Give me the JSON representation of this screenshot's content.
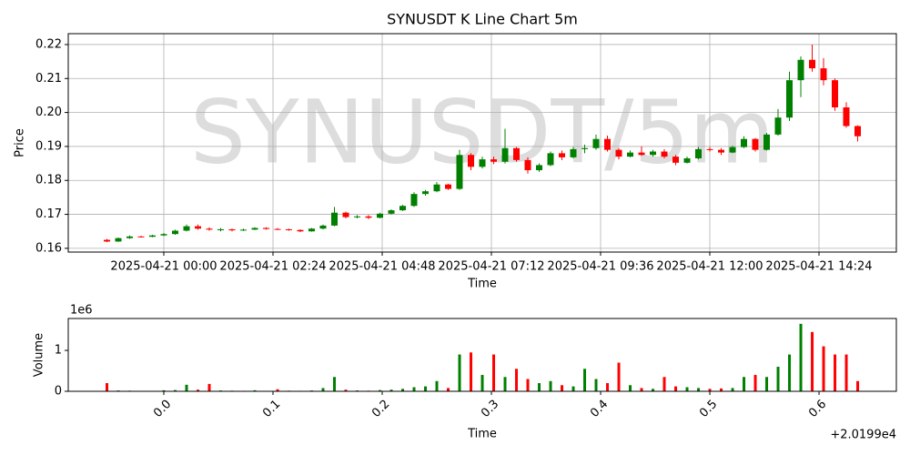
{
  "chart_data": [
    {
      "type": "candlestick",
      "title": "SYNUSDT K Line Chart 5m",
      "watermark": "SYNUSDT/5m",
      "xlabel": "Time",
      "ylabel": "Price",
      "grid": true,
      "up_color": "green",
      "down_color": "red",
      "xlim": [
        "2025-04-20 21:54",
        "2025-04-21 16:06"
      ],
      "xticks": [
        "2025-04-21 00:00",
        "2025-04-21 02:24",
        "2025-04-21 04:48",
        "2025-04-21 07:12",
        "2025-04-21 09:36",
        "2025-04-21 12:00",
        "2025-04-21 14:24"
      ],
      "ylim": [
        0.1589,
        0.2232
      ],
      "yticks": [
        0.16,
        0.17,
        0.18,
        0.19,
        {
          "value": 0.2,
          "label": "0.20"
        },
        0.21,
        0.22
      ],
      "x": [
        "2025-04-20 22:45",
        "2025-04-20 23:00",
        "2025-04-20 23:15",
        "2025-04-20 23:30",
        "2025-04-20 23:45",
        "2025-04-21 00:00",
        "2025-04-21 00:15",
        "2025-04-21 00:30",
        "2025-04-21 00:45",
        "2025-04-21 01:00",
        "2025-04-21 01:15",
        "2025-04-21 01:30",
        "2025-04-21 01:45",
        "2025-04-21 02:00",
        "2025-04-21 02:15",
        "2025-04-21 02:30",
        "2025-04-21 02:45",
        "2025-04-21 03:00",
        "2025-04-21 03:15",
        "2025-04-21 03:30",
        "2025-04-21 03:45",
        "2025-04-21 04:00",
        "2025-04-21 04:15",
        "2025-04-21 04:30",
        "2025-04-21 04:45",
        "2025-04-21 05:00",
        "2025-04-21 05:15",
        "2025-04-21 05:30",
        "2025-04-21 05:45",
        "2025-04-21 06:00",
        "2025-04-21 06:15",
        "2025-04-21 06:30",
        "2025-04-21 06:45",
        "2025-04-21 07:00",
        "2025-04-21 07:15",
        "2025-04-21 07:30",
        "2025-04-21 07:45",
        "2025-04-21 08:00",
        "2025-04-21 08:15",
        "2025-04-21 08:30",
        "2025-04-21 08:45",
        "2025-04-21 09:00",
        "2025-04-21 09:15",
        "2025-04-21 09:30",
        "2025-04-21 09:45",
        "2025-04-21 10:00",
        "2025-04-21 10:15",
        "2025-04-21 10:30",
        "2025-04-21 10:45",
        "2025-04-21 11:00",
        "2025-04-21 11:15",
        "2025-04-21 11:30",
        "2025-04-21 11:45",
        "2025-04-21 12:00",
        "2025-04-21 12:15",
        "2025-04-21 12:30",
        "2025-04-21 12:45",
        "2025-04-21 13:00",
        "2025-04-21 13:15",
        "2025-04-21 13:30",
        "2025-04-21 13:45",
        "2025-04-21 14:00",
        "2025-04-21 14:15",
        "2025-04-21 14:30",
        "2025-04-21 14:45",
        "2025-04-21 15:00",
        "2025-04-21 15:15"
      ],
      "open": [
        0.1625,
        0.162,
        0.163,
        0.1635,
        0.1634,
        0.1638,
        0.1642,
        0.1652,
        0.1665,
        0.1658,
        0.1655,
        0.1656,
        0.1653,
        0.1655,
        0.166,
        0.1657,
        0.1656,
        0.1654,
        0.165,
        0.1658,
        0.1667,
        0.1705,
        0.1692,
        0.1694,
        0.169,
        0.1702,
        0.1712,
        0.1725,
        0.176,
        0.1768,
        0.1788,
        0.1775,
        0.1875,
        0.184,
        0.1862,
        0.1855,
        0.1895,
        0.186,
        0.183,
        0.1845,
        0.188,
        0.1868,
        0.1892,
        0.1895,
        0.1922,
        0.189,
        0.187,
        0.1882,
        0.1875,
        0.1885,
        0.187,
        0.1852,
        0.1865,
        0.1892,
        0.189,
        0.1882,
        0.1898,
        0.1922,
        0.189,
        0.1935,
        0.1985,
        0.2095,
        0.2155,
        0.213,
        0.2095,
        0.2015,
        0.196
      ],
      "high": [
        0.1628,
        0.1632,
        0.1638,
        0.1637,
        0.164,
        0.1645,
        0.1655,
        0.167,
        0.167,
        0.1662,
        0.166,
        0.1658,
        0.1658,
        0.1662,
        0.1662,
        0.166,
        0.1658,
        0.1656,
        0.166,
        0.167,
        0.1722,
        0.1708,
        0.1698,
        0.1698,
        0.1705,
        0.1715,
        0.1728,
        0.1765,
        0.1772,
        0.1795,
        0.179,
        0.189,
        0.188,
        0.187,
        0.187,
        0.1952,
        0.1898,
        0.1868,
        0.185,
        0.1885,
        0.1888,
        0.1898,
        0.1905,
        0.1935,
        0.1932,
        0.1895,
        0.1888,
        0.19,
        0.189,
        0.1892,
        0.1875,
        0.187,
        0.1898,
        0.1898,
        0.1895,
        0.1902,
        0.193,
        0.1925,
        0.194,
        0.201,
        0.212,
        0.2165,
        0.22,
        0.216,
        0.21,
        0.203,
        0.1962
      ],
      "low": [
        0.1618,
        0.1619,
        0.1628,
        0.1632,
        0.1633,
        0.1636,
        0.164,
        0.165,
        0.1655,
        0.1652,
        0.165,
        0.165,
        0.1651,
        0.1654,
        0.1655,
        0.1654,
        0.1652,
        0.1648,
        0.1649,
        0.1656,
        0.1665,
        0.1688,
        0.1688,
        0.1686,
        0.1688,
        0.17,
        0.171,
        0.1722,
        0.1755,
        0.1765,
        0.1772,
        0.1772,
        0.183,
        0.1835,
        0.1848,
        0.185,
        0.1855,
        0.182,
        0.1825,
        0.1842,
        0.186,
        0.1865,
        0.188,
        0.189,
        0.1885,
        0.1862,
        0.1868,
        0.1872,
        0.187,
        0.1865,
        0.1845,
        0.185,
        0.1862,
        0.1885,
        0.1875,
        0.188,
        0.1895,
        0.1885,
        0.1888,
        0.1932,
        0.1975,
        0.2045,
        0.212,
        0.208,
        0.2005,
        0.1955,
        0.1915
      ],
      "close": [
        0.162,
        0.163,
        0.1635,
        0.1634,
        0.1638,
        0.1642,
        0.1652,
        0.1665,
        0.1658,
        0.1655,
        0.1656,
        0.1653,
        0.1655,
        0.166,
        0.1657,
        0.1656,
        0.1654,
        0.165,
        0.1658,
        0.1667,
        0.1705,
        0.1692,
        0.1694,
        0.169,
        0.1702,
        0.1712,
        0.1725,
        0.176,
        0.1768,
        0.1788,
        0.1775,
        0.1875,
        0.184,
        0.1862,
        0.1855,
        0.1895,
        0.186,
        0.183,
        0.1845,
        0.188,
        0.1868,
        0.1892,
        0.1895,
        0.1922,
        0.189,
        0.187,
        0.1882,
        0.1875,
        0.1885,
        0.187,
        0.1852,
        0.1865,
        0.1892,
        0.189,
        0.1882,
        0.1898,
        0.1922,
        0.189,
        0.1935,
        0.1985,
        0.2095,
        0.2155,
        0.213,
        0.2095,
        0.2015,
        0.196,
        0.193
      ]
    },
    {
      "type": "bar",
      "xlabel": "Time",
      "ylabel": "Volume",
      "grid": false,
      "y_offset": "1e6",
      "x_offset": "+2.0199e4",
      "xlim": [
        -0.0875,
        0.6708
      ],
      "xticks": [
        {
          "value": 0,
          "label": "0.0"
        },
        0.1,
        0.2,
        0.3,
        0.4,
        0.5,
        0.6
      ],
      "ylim": [
        0,
        1780000
      ],
      "yticks": [
        0,
        {
          "value": 1000000,
          "label": "1"
        }
      ],
      "x": [
        "2025-04-20 22:45",
        "2025-04-20 23:00",
        "2025-04-20 23:15",
        "2025-04-20 23:30",
        "2025-04-20 23:45",
        "2025-04-21 00:00",
        "2025-04-21 00:15",
        "2025-04-21 00:30",
        "2025-04-21 00:45",
        "2025-04-21 01:00",
        "2025-04-21 01:15",
        "2025-04-21 01:30",
        "2025-04-21 01:45",
        "2025-04-21 02:00",
        "2025-04-21 02:15",
        "2025-04-21 02:30",
        "2025-04-21 02:45",
        "2025-04-21 03:00",
        "2025-04-21 03:15",
        "2025-04-21 03:30",
        "2025-04-21 03:45",
        "2025-04-21 04:00",
        "2025-04-21 04:15",
        "2025-04-21 04:30",
        "2025-04-21 04:45",
        "2025-04-21 05:00",
        "2025-04-21 05:15",
        "2025-04-21 05:30",
        "2025-04-21 05:45",
        "2025-04-21 06:00",
        "2025-04-21 06:15",
        "2025-04-21 06:30",
        "2025-04-21 06:45",
        "2025-04-21 07:00",
        "2025-04-21 07:15",
        "2025-04-21 07:30",
        "2025-04-21 07:45",
        "2025-04-21 08:00",
        "2025-04-21 08:15",
        "2025-04-21 08:30",
        "2025-04-21 08:45",
        "2025-04-21 09:00",
        "2025-04-21 09:15",
        "2025-04-21 09:30",
        "2025-04-21 09:45",
        "2025-04-21 10:00",
        "2025-04-21 10:15",
        "2025-04-21 10:30",
        "2025-04-21 10:45",
        "2025-04-21 11:00",
        "2025-04-21 11:15",
        "2025-04-21 11:30",
        "2025-04-21 11:45",
        "2025-04-21 12:00",
        "2025-04-21 12:15",
        "2025-04-21 12:30",
        "2025-04-21 12:45",
        "2025-04-21 13:00",
        "2025-04-21 13:15",
        "2025-04-21 13:30",
        "2025-04-21 13:45",
        "2025-04-21 14:00",
        "2025-04-21 14:15",
        "2025-04-21 14:30",
        "2025-04-21 14:45",
        "2025-04-21 15:00",
        "2025-04-21 15:15"
      ],
      "values": [
        200000,
        20000,
        15000,
        8000,
        10000,
        25000,
        30000,
        160000,
        40000,
        180000,
        20000,
        15000,
        12000,
        25000,
        10000,
        50000,
        15000,
        12000,
        20000,
        80000,
        350000,
        40000,
        20000,
        15000,
        30000,
        40000,
        60000,
        100000,
        120000,
        250000,
        80000,
        900000,
        950000,
        400000,
        900000,
        350000,
        550000,
        300000,
        200000,
        250000,
        150000,
        120000,
        550000,
        300000,
        200000,
        700000,
        150000,
        80000,
        60000,
        350000,
        120000,
        100000,
        80000,
        60000,
        70000,
        80000,
        350000,
        400000,
        350000,
        600000,
        900000,
        1650000,
        1450000,
        1100000,
        900000,
        900000,
        250000
      ]
    }
  ]
}
